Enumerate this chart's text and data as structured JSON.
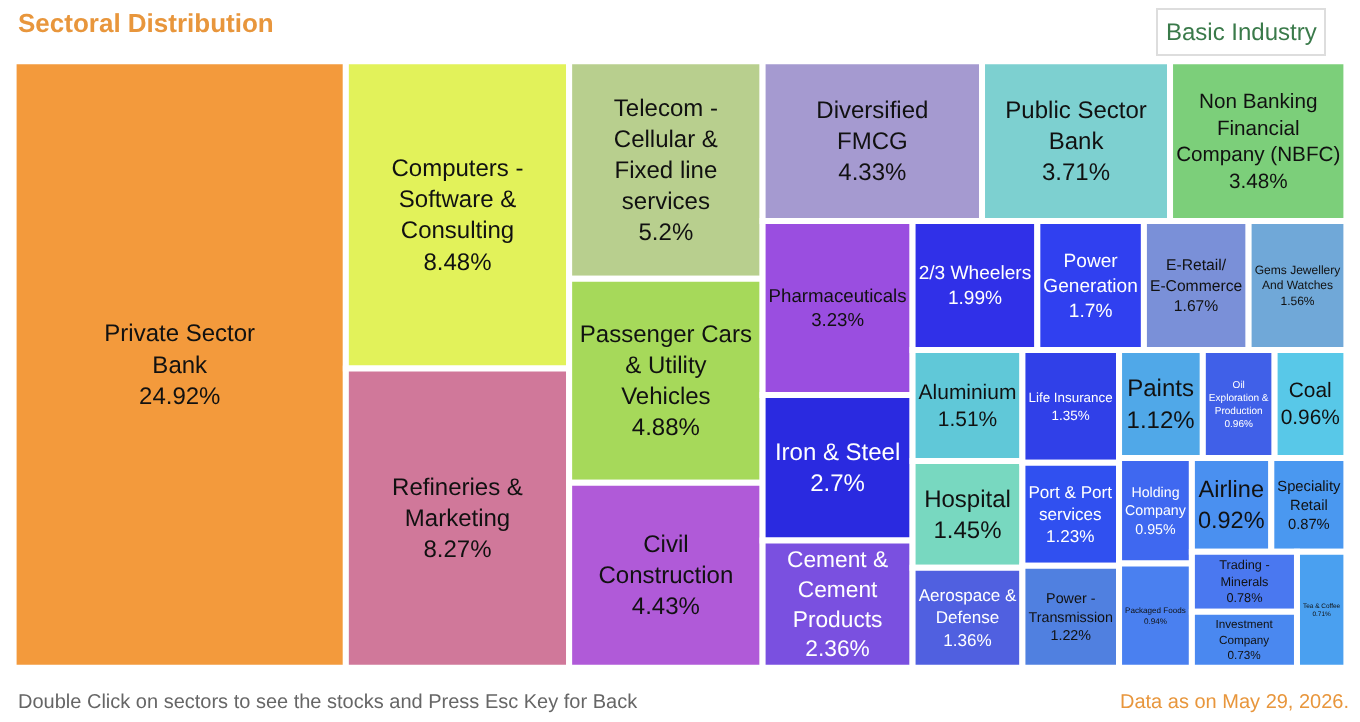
{
  "chart_data": {
    "type": "other",
    "title": "Sectoral Distribution",
    "annotations": [
      "Basic Industry",
      "Double Click on sectors to see the stocks and Press Esc Key for Back",
      "Data as on May 29, 2026."
    ],
    "categories": [
      "Private Sector Bank",
      "Computers - Software & Consulting",
      "Refineries & Marketing",
      "Telecom - Cellular & Fixed line services",
      "Passenger Cars & Utility Vehicles",
      "Civil Construction",
      "Diversified FMCG",
      "Public Sector Bank",
      "Non Banking Financial Company (NBFC)",
      "Pharmaceuticals",
      "Iron & Steel",
      "Cement & Cement Products",
      "2/3 Wheelers",
      "Power Generation",
      "E-Retail/ E-Commerce",
      "Gems Jewellery And Watches",
      "Aluminium",
      "Hospital",
      "Aerospace & Defense",
      "Life Insurance",
      "Port & Port services",
      "Power - Transmission",
      "Paints",
      "Oil Exploration & Production",
      "Coal",
      "Holding Company",
      "Packaged Foods",
      "Airline",
      "Speciality Retail",
      "Trading - Minerals",
      "Investment Company",
      "Tea & Coffee"
    ],
    "values": [
      24.92,
      8.48,
      8.27,
      5.2,
      4.88,
      4.43,
      4.33,
      3.71,
      3.48,
      3.23,
      2.7,
      2.36,
      1.99,
      1.7,
      1.67,
      1.56,
      1.51,
      1.45,
      1.36,
      1.35,
      1.23,
      1.22,
      1.12,
      0.96,
      0.96,
      0.95,
      0.94,
      0.92,
      0.87,
      0.78,
      0.73,
      0.71
    ],
    "value_labels": [
      "24.92%",
      "8.48%",
      "8.27%",
      "5.2%",
      "4.88%",
      "4.43%",
      "4.33%",
      "3.71%",
      "3.48%",
      "3.23%",
      "2.7%",
      "2.36%",
      "1.99%",
      "1.7%",
      "1.67%",
      "1.56%",
      "1.51%",
      "1.45%",
      "1.36%",
      "1.35%",
      "1.23%",
      "1.22%",
      "1.12%",
      "0.96%",
      "0.96%",
      "0.95%",
      "0.94%",
      "0.92%",
      "0.87%",
      "0.78%",
      "0.73%",
      "0.71%"
    ],
    "colors": [
      "#f39a3c",
      "#e2f25a",
      "#d0789a",
      "#b8cf8e",
      "#a6d95a",
      "#b05ad8",
      "#a59ad0",
      "#7dd0d0",
      "#7ccf7a",
      "#9a4ee0",
      "#2a2ae0",
      "#7a50e0",
      "#3030e8",
      "#3040f0",
      "#7a90d8",
      "#70a8d8",
      "#60c8d8",
      "#78d8c0",
      "#5060e0",
      "#3040e8",
      "#3050f0",
      "#5080e0",
      "#50a8e8",
      "#4060e8",
      "#58c8e8",
      "#3f68f0",
      "#4a80f0",
      "#4a90f0",
      "#4a98f0",
      "#4a78f0",
      "#4a88f0",
      "#4aa0f0"
    ]
  }
}
